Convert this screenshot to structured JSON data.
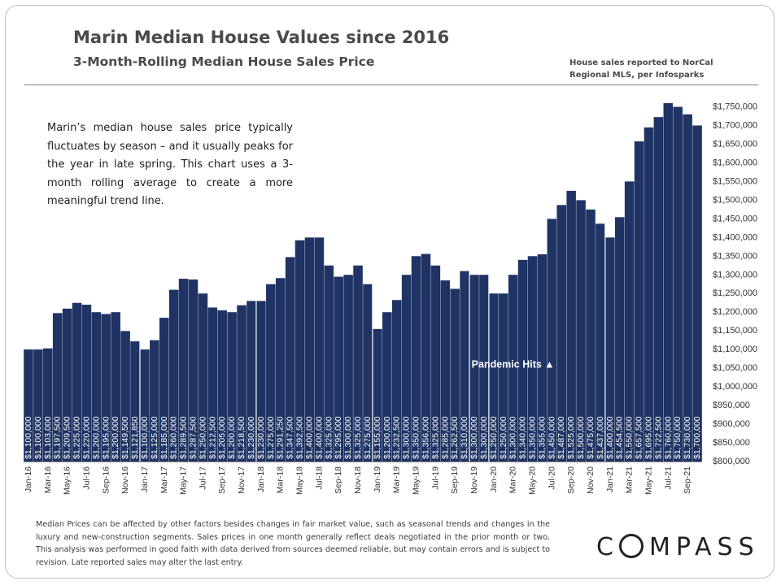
{
  "header": {
    "title": "Marin Median House Values since 2016",
    "subtitle": "3-Month-Rolling Median House Sales Price",
    "source_line1": "House sales reported to NorCal",
    "source_line2": "Regional MLS, per Infosparks"
  },
  "annotation_text": "Marin’s median house sales price typically fluctuates by season – and it usually peaks for the year in late spring. This chart uses a 3-month rolling average to create a more meaningful trend line.",
  "footnote": "Median Prices can be affected by other factors besides changes in fair market value, such as seasonal trends and changes in the luxury and new-construction segments. Sales prices in one month generally reflect deals negotiated in the prior month or two. This analysis was performed in good faith with data derived from sources deemed reliable, but may contain errors and is subject to revision. Late reported sales may alter the last entry.",
  "logo": {
    "text": "MPASS",
    "prefix": "C"
  },
  "colors": {
    "bar": "#1f3464",
    "bar_label": "#ffffff",
    "axis_text": "#333333"
  },
  "chart_data": {
    "type": "bar",
    "title": "Marin Median House Values since 2016",
    "subtitle": "3-Month-Rolling Median House Sales Price",
    "ylim": [
      800000,
      1775000
    ],
    "y_ticks": [
      800000,
      850000,
      900000,
      950000,
      1000000,
      1050000,
      1100000,
      1150000,
      1200000,
      1250000,
      1300000,
      1350000,
      1400000,
      1450000,
      1500000,
      1550000,
      1600000,
      1650000,
      1700000,
      1750000
    ],
    "y_tick_labels": [
      "$800,000",
      "$850,000",
      "$900,000",
      "$950,000",
      "$1,000,000",
      "$1,050,000",
      "$1,100,000",
      "$1,150,000",
      "$1,200,000",
      "$1,250,000",
      "$1,300,000",
      "$1,350,000",
      "$1,400,000",
      "$1,450,000",
      "$1,500,000",
      "$1,550,000",
      "$1,600,000",
      "$1,650,000",
      "$1,700,000",
      "$1,750,000"
    ],
    "categories": [
      "Jan-16",
      "Feb-16",
      "Mar-16",
      "Apr-16",
      "May-16",
      "Jun-16",
      "Jul-16",
      "Aug-16",
      "Sep-16",
      "Oct-16",
      "Nov-16",
      "Dec-16",
      "Jan-17",
      "Feb-17",
      "Mar-17",
      "Apr-17",
      "May-17",
      "Jun-17",
      "Jul-17",
      "Aug-17",
      "Sep-17",
      "Oct-17",
      "Nov-17",
      "Dec-17",
      "Jan-18",
      "Feb-18",
      "Mar-18",
      "Apr-18",
      "May-18",
      "Jun-18",
      "Jul-18",
      "Aug-18",
      "Sep-18",
      "Oct-18",
      "Nov-18",
      "Dec-18",
      "Jan-19",
      "Feb-19",
      "Mar-19",
      "Apr-19",
      "May-19",
      "Jun-19",
      "Jul-19",
      "Aug-19",
      "Sep-19",
      "Oct-19",
      "Nov-19",
      "Dec-19",
      "Jan-20",
      "Feb-20",
      "Mar-20",
      "Apr-20",
      "May-20",
      "Jun-20",
      "Jul-20",
      "Aug-20",
      "Sep-20",
      "Oct-20",
      "Nov-20",
      "Dec-20",
      "Jan-21",
      "Feb-21",
      "Mar-21",
      "Apr-21",
      "May-21",
      "Jun-21",
      "Jul-21",
      "Aug-21",
      "Sep-21",
      "Oct-21"
    ],
    "x_tick_labels": [
      "Jan-16",
      "",
      "Mar-16",
      "",
      "May-16",
      "",
      "Jul-16",
      "",
      "Sep-16",
      "",
      "Nov-16",
      "",
      "Jan-17",
      "",
      "Mar-17",
      "",
      "May-17",
      "",
      "Jul-17",
      "",
      "Sep-17",
      "",
      "Nov-17",
      "",
      "Jan-18",
      "",
      "Mar-18",
      "",
      "May-18",
      "",
      "Jul-18",
      "",
      "Sep-18",
      "",
      "Nov-18",
      "",
      "Jan-19",
      "",
      "Mar-19",
      "",
      "May-19",
      "",
      "Jul-19",
      "",
      "Sep-19",
      "",
      "Nov-19",
      "",
      "Jan-20",
      "",
      "Mar-20",
      "",
      "May-20",
      "",
      "Jul-20",
      "",
      "Sep-20",
      "",
      "Nov-20",
      "",
      "Jan-21",
      "",
      "Mar-21",
      "",
      "May-21",
      "",
      "Jul-21",
      "",
      "Sep-21",
      ""
    ],
    "values": [
      1100000,
      1100000,
      1103000,
      1197500,
      1209500,
      1225000,
      1220000,
      1200000,
      1195000,
      1200000,
      1149500,
      1121850,
      1100000,
      1125000,
      1185000,
      1260000,
      1289500,
      1287500,
      1250000,
      1212500,
      1205000,
      1200000,
      1218500,
      1230000,
      1230000,
      1275000,
      1291250,
      1347500,
      1392500,
      1400000,
      1400000,
      1325000,
      1295000,
      1300000,
      1325000,
      1275000,
      1155000,
      1200000,
      1232500,
      1300000,
      1350000,
      1356000,
      1325000,
      1285000,
      1262500,
      1310000,
      1300000,
      1300000,
      1250000,
      1250000,
      1300000,
      1340000,
      1350000,
      1355000,
      1450000,
      1487000,
      1525000,
      1500000,
      1475000,
      1437000,
      1400000,
      1454500,
      1550000,
      1657500,
      1695000,
      1722500,
      1760000,
      1750000,
      1730000,
      1700000
    ],
    "data_labels": [
      "$1,100,000",
      "$1,100,000",
      "$1,103,000",
      "$1,197,500",
      "$1,209,500",
      "$1,225,000",
      "$1,220,000",
      "$1,200,000",
      "$1,195,000",
      "$1,200,000",
      "$1,149,500",
      "$1,121,850",
      "$1,100,000",
      "$1,125,000",
      "$1,185,000",
      "$1,260,000",
      "$1,289,500",
      "$1,287,500",
      "$1,250,000",
      "$1,212,500",
      "$1,205,000",
      "$1,200,000",
      "$1,218,500",
      "$1,230,000",
      "$1,230,000",
      "$1,275,000",
      "$1,291,250",
      "$1,347,500",
      "$1,392,500",
      "$1,400,000",
      "$1,400,000",
      "$1,325,000",
      "$1,295,000",
      "$1,300,000",
      "$1,325,000",
      "$1,275,000",
      "$1,155,000",
      "$1,200,000",
      "$1,232,500",
      "$1,300,000",
      "$1,350,000",
      "$1,356,000",
      "$1,325,000",
      "$1,285,000",
      "$1,262,500",
      "$1,310,000",
      "$1,300,000",
      "$1,300,000",
      "$1,250,000",
      "$1,250,000",
      "$1,300,000",
      "$1,340,000",
      "$1,350,000",
      "$1,355,000",
      "$1,450,000",
      "$1,487,000",
      "$1,525,000",
      "$1,500,000",
      "$1,475,000",
      "$1,437,000",
      "$1,400,000",
      "$1,454,500",
      "$1,550,000",
      "$1,657,500",
      "$1,695,000",
      "$1,722,500",
      "$1,760,000",
      "$1,750,000",
      "$1,730,000",
      "$1,700,000"
    ],
    "year_divider_before": [
      "Jan-17",
      "Jan-18",
      "Jan-19",
      "Jan-20",
      "Jan-21"
    ],
    "event_divider_before": [
      "Nov-19"
    ],
    "event_annotation": {
      "text": "Pandemic Hits",
      "symbol": "▲",
      "at_category": "Mar-20",
      "value": 1060000
    },
    "grid": false,
    "legend": "none",
    "y_axis_side": "right"
  }
}
